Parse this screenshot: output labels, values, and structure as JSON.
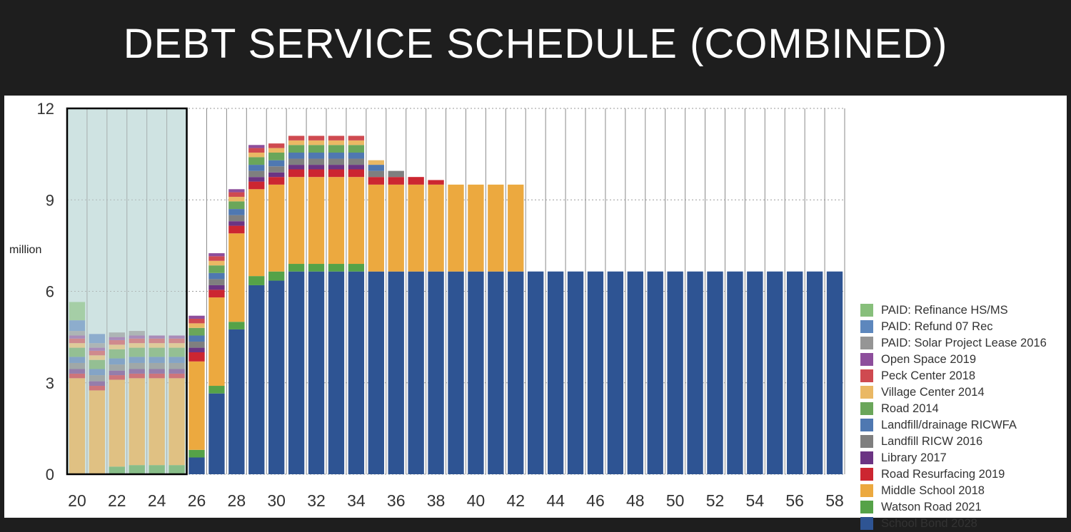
{
  "title": "DEBT SERVICE SCHEDULE (COMBINED)",
  "chart_data": {
    "type": "bar",
    "stacked": true,
    "ylabel": "million",
    "ylim": [
      0,
      12
    ],
    "yticks": [
      0,
      3,
      6,
      9,
      12
    ],
    "categories": [
      "20",
      "21",
      "22",
      "23",
      "24",
      "25",
      "26",
      "27",
      "28",
      "29",
      "30",
      "31",
      "32",
      "33",
      "34",
      "35",
      "36",
      "37",
      "38",
      "39",
      "40",
      "41",
      "42",
      "43",
      "44",
      "45",
      "46",
      "47",
      "48",
      "49",
      "50",
      "51",
      "52",
      "53",
      "54",
      "55",
      "56",
      "57",
      "58"
    ],
    "xtick_labels": [
      "20",
      "22",
      "24",
      "26",
      "28",
      "30",
      "32",
      "34",
      "36",
      "38",
      "40",
      "42",
      "44",
      "46",
      "48",
      "50",
      "52",
      "54",
      "56",
      "58"
    ],
    "highlight": {
      "from": "20",
      "to": "25",
      "color": "#cfe3e2"
    },
    "grid": "dotted horizontal at ticks, vertical lines at category boundaries",
    "legend_position": "right",
    "series": [
      {
        "name": "School Bond 2028",
        "color": "#2e5493",
        "values": [
          0,
          0,
          0,
          0,
          0,
          0,
          0.55,
          2.65,
          4.75,
          6.2,
          6.35,
          6.65,
          6.65,
          6.65,
          6.65,
          6.65,
          6.65,
          6.65,
          6.65,
          6.65,
          6.65,
          6.65,
          6.65,
          6.65,
          6.65,
          6.65,
          6.65,
          6.65,
          6.65,
          6.65,
          6.65,
          6.65,
          6.65,
          6.65,
          6.65,
          6.65,
          6.65,
          6.65,
          6.65
        ]
      },
      {
        "name": "Watson Road 2021",
        "color": "#55a248",
        "values": [
          0,
          0,
          0.25,
          0.3,
          0.3,
          0.3,
          0.25,
          0.25,
          0.25,
          0.3,
          0.3,
          0.25,
          0.25,
          0.25,
          0.25,
          0,
          0,
          0,
          0,
          0,
          0,
          0,
          0,
          0,
          0,
          0,
          0,
          0,
          0,
          0,
          0,
          0,
          0,
          0,
          0,
          0,
          0,
          0,
          0
        ]
      },
      {
        "name": "Middle School 2018",
        "color": "#eca93f",
        "values": [
          3.15,
          2.75,
          2.85,
          2.85,
          2.85,
          2.85,
          2.9,
          2.9,
          2.9,
          2.85,
          2.85,
          2.85,
          2.85,
          2.85,
          2.85,
          2.85,
          2.85,
          2.85,
          2.85,
          2.85,
          2.85,
          2.85,
          2.85,
          0,
          0,
          0,
          0,
          0,
          0,
          0,
          0,
          0,
          0,
          0,
          0,
          0,
          0,
          0,
          0
        ]
      },
      {
        "name": "Road Resurfacing 2019",
        "color": "#cc2631",
        "values": [
          0.15,
          0.15,
          0.15,
          0.15,
          0.15,
          0.15,
          0.3,
          0.25,
          0.25,
          0.25,
          0.25,
          0.25,
          0.25,
          0.25,
          0.25,
          0.25,
          0.25,
          0.25,
          0.15,
          0,
          0,
          0,
          0,
          0,
          0,
          0,
          0,
          0,
          0,
          0,
          0,
          0,
          0,
          0,
          0,
          0,
          0,
          0,
          0
        ]
      },
      {
        "name": "Library 2017",
        "color": "#6b3483",
        "values": [
          0.15,
          0.15,
          0.15,
          0.15,
          0.15,
          0.15,
          0.15,
          0.15,
          0.15,
          0.15,
          0.15,
          0.15,
          0.15,
          0.15,
          0.15,
          0,
          0,
          0,
          0,
          0,
          0,
          0,
          0,
          0,
          0,
          0,
          0,
          0,
          0,
          0,
          0,
          0,
          0,
          0,
          0,
          0,
          0,
          0,
          0
        ]
      },
      {
        "name": "Landfill RICW 2016",
        "color": "#7f7f7f",
        "values": [
          0.2,
          0.2,
          0.2,
          0.2,
          0.2,
          0.2,
          0.2,
          0.2,
          0.2,
          0.2,
          0.2,
          0.2,
          0.2,
          0.2,
          0.2,
          0.2,
          0.2,
          0,
          0,
          0,
          0,
          0,
          0,
          0,
          0,
          0,
          0,
          0,
          0,
          0,
          0,
          0,
          0,
          0,
          0,
          0,
          0,
          0,
          0
        ]
      },
      {
        "name": "Landfill/drainage RICWFA",
        "color": "#4f78b1",
        "values": [
          0.2,
          0.2,
          0.2,
          0.2,
          0.2,
          0.2,
          0.2,
          0.2,
          0.2,
          0.2,
          0.2,
          0.2,
          0.2,
          0.2,
          0.2,
          0.2,
          0,
          0,
          0,
          0,
          0,
          0,
          0,
          0,
          0,
          0,
          0,
          0,
          0,
          0,
          0,
          0,
          0,
          0,
          0,
          0,
          0,
          0,
          0
        ]
      },
      {
        "name": "Road 2014",
        "color": "#6aa65a",
        "values": [
          0.3,
          0.3,
          0.3,
          0.3,
          0.3,
          0.3,
          0.25,
          0.25,
          0.25,
          0.25,
          0.25,
          0.25,
          0.25,
          0.25,
          0.25,
          0,
          0,
          0,
          0,
          0,
          0,
          0,
          0,
          0,
          0,
          0,
          0,
          0,
          0,
          0,
          0,
          0,
          0,
          0,
          0,
          0,
          0,
          0,
          0
        ]
      },
      {
        "name": "Village Center 2014",
        "color": "#eab864",
        "values": [
          0.15,
          0.15,
          0.15,
          0.15,
          0.15,
          0.15,
          0.15,
          0.15,
          0.15,
          0.15,
          0.15,
          0.15,
          0.15,
          0.15,
          0.15,
          0.15,
          0,
          0,
          0,
          0,
          0,
          0,
          0,
          0,
          0,
          0,
          0,
          0,
          0,
          0,
          0,
          0,
          0,
          0,
          0,
          0,
          0,
          0,
          0
        ]
      },
      {
        "name": "Peck Center 2018",
        "color": "#cf4a50",
        "values": [
          0.15,
          0.15,
          0.15,
          0.15,
          0.15,
          0.15,
          0.15,
          0.15,
          0.15,
          0.15,
          0.15,
          0.15,
          0.15,
          0.15,
          0.15,
          0,
          0,
          0,
          0,
          0,
          0,
          0,
          0,
          0,
          0,
          0,
          0,
          0,
          0,
          0,
          0,
          0,
          0,
          0,
          0,
          0,
          0,
          0,
          0
        ]
      },
      {
        "name": "Open Space 2019",
        "color": "#8d4e9c",
        "values": [
          0.1,
          0.1,
          0.1,
          0.1,
          0.1,
          0.1,
          0.1,
          0.1,
          0.1,
          0.1,
          0,
          0,
          0,
          0,
          0,
          0,
          0,
          0,
          0,
          0,
          0,
          0,
          0,
          0,
          0,
          0,
          0,
          0,
          0,
          0,
          0,
          0,
          0,
          0,
          0,
          0,
          0,
          0,
          0
        ]
      },
      {
        "name": "PAID: Solar Project Lease 2016",
        "color": "#959595",
        "values": [
          0.15,
          0.15,
          0.15,
          0.15,
          0,
          0,
          0,
          0,
          0,
          0,
          0,
          0,
          0,
          0,
          0,
          0,
          0,
          0,
          0,
          0,
          0,
          0,
          0,
          0,
          0,
          0,
          0,
          0,
          0,
          0,
          0,
          0,
          0,
          0,
          0,
          0,
          0,
          0,
          0
        ]
      },
      {
        "name": "PAID: Refund 07 Rec",
        "color": "#5d87bd",
        "values": [
          0.35,
          0.3,
          0,
          0,
          0,
          0,
          0,
          0,
          0,
          0,
          0,
          0,
          0,
          0,
          0,
          0,
          0,
          0,
          0,
          0,
          0,
          0,
          0,
          0,
          0,
          0,
          0,
          0,
          0,
          0,
          0,
          0,
          0,
          0,
          0,
          0,
          0,
          0,
          0
        ]
      },
      {
        "name": "PAID: Refinance HS/MS",
        "color": "#87bf7b",
        "values": [
          0.6,
          0,
          0,
          0,
          0,
          0,
          0,
          0,
          0,
          0,
          0,
          0,
          0,
          0,
          0,
          0,
          0,
          0,
          0,
          0,
          0,
          0,
          0,
          0,
          0,
          0,
          0,
          0,
          0,
          0,
          0,
          0,
          0,
          0,
          0,
          0,
          0,
          0,
          0
        ]
      }
    ],
    "legend_order": [
      "PAID: Refinance HS/MS",
      "PAID: Refund 07 Rec",
      "PAID: Solar Project Lease 2016",
      "Open Space 2019",
      "Peck Center 2018",
      "Village Center 2014",
      "Road 2014",
      "Landfill/drainage RICWFA",
      "Landfill RICW 2016",
      "Library 2017",
      "Road Resurfacing 2019",
      "Middle School 2018",
      "Watson Road 2021",
      "School Bond 2028"
    ]
  }
}
